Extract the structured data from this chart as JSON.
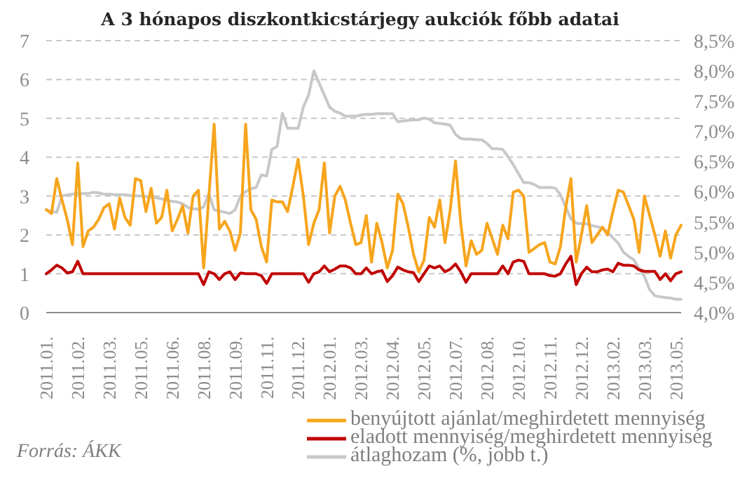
{
  "chart_data": {
    "type": "line",
    "title": "A 3 hónapos diszkontkicstárjegy aukciók főbb adatai",
    "annotations": [
      "Forrás: ÁKK"
    ],
    "categories": [
      "2011.01.",
      null,
      null,
      null,
      null,
      null,
      "2011.02.",
      null,
      null,
      null,
      null,
      null,
      "2011.03.",
      null,
      null,
      null,
      null,
      null,
      "2011.05.",
      null,
      null,
      null,
      null,
      null,
      "2011.06.",
      null,
      null,
      null,
      null,
      null,
      "2011.08.",
      null,
      null,
      null,
      null,
      null,
      "2011.09.",
      null,
      null,
      null,
      null,
      null,
      "2011.11.",
      null,
      null,
      null,
      null,
      null,
      "2011.12.",
      null,
      null,
      null,
      null,
      null,
      "2012.01.",
      null,
      null,
      null,
      null,
      null,
      "2012.03.",
      null,
      null,
      null,
      null,
      null,
      "2012.04.",
      null,
      null,
      null,
      null,
      null,
      "2012.05.",
      null,
      null,
      null,
      null,
      null,
      "2012.07.",
      null,
      null,
      null,
      null,
      null,
      "2012.08.",
      null,
      null,
      null,
      null,
      null,
      "2012.10.",
      null,
      null,
      null,
      null,
      null,
      "2012.11.",
      null,
      null,
      null,
      null,
      null,
      "2012.12.",
      null,
      null,
      null,
      null,
      null,
      "2013.02.",
      null,
      null,
      null,
      null,
      null,
      "2013.03.",
      null,
      null,
      null,
      null,
      null,
      "2013.05.",
      null
    ],
    "series": [
      {
        "name": "benyújtott ajánlat/meghirdetett mennyiség",
        "color": "#f7a51d",
        "values": [
          2.65,
          2.55,
          3.45,
          2.9,
          2.4,
          1.75,
          3.85,
          1.7,
          2.1,
          2.2,
          2.4,
          2.7,
          2.8,
          2.15,
          2.95,
          2.45,
          2.25,
          3.45,
          3.4,
          2.6,
          3.2,
          2.3,
          2.45,
          3.15,
          2.1,
          2.4,
          2.75,
          2.05,
          3.0,
          3.15,
          1.15,
          3.0,
          4.85,
          2.15,
          2.35,
          2.1,
          1.6,
          2.05,
          4.85,
          2.65,
          2.4,
          1.7,
          1.3,
          2.9,
          2.85,
          2.85,
          2.6,
          3.25,
          3.95,
          3.0,
          1.75,
          2.3,
          2.65,
          3.85,
          2.05,
          3.0,
          3.25,
          2.9,
          2.3,
          1.75,
          1.8,
          2.5,
          1.3,
          2.3,
          1.8,
          1.15,
          1.6,
          3.05,
          2.8,
          2.2,
          1.5,
          1.05,
          1.35,
          2.45,
          2.2,
          2.9,
          1.8,
          2.65,
          3.9,
          2.3,
          1.2,
          1.85,
          1.5,
          1.6,
          2.3,
          1.9,
          1.5,
          2.25,
          1.9,
          3.1,
          3.15,
          3.0,
          1.55,
          1.65,
          1.75,
          1.8,
          1.3,
          1.25,
          1.7,
          2.7,
          3.45,
          1.3,
          2.0,
          2.75,
          1.8,
          2.0,
          2.2,
          2.0,
          2.6,
          3.15,
          3.1,
          2.75,
          2.4,
          1.55,
          3.0,
          2.5,
          2.0,
          1.45,
          2.1,
          1.4,
          2.0,
          2.25
        ]
      },
      {
        "name": "eladott mennyiség/meghirdetett mennyiség",
        "color": "#c00000",
        "values": [
          1.0,
          1.1,
          1.22,
          1.15,
          1.02,
          1.05,
          1.32,
          1.0,
          1.0,
          1.0,
          1.0,
          1.0,
          1.0,
          1.0,
          1.0,
          1.0,
          1.0,
          1.0,
          1.0,
          1.0,
          1.0,
          1.0,
          1.0,
          1.0,
          1.0,
          1.0,
          1.0,
          1.0,
          1.0,
          1.0,
          0.72,
          1.05,
          1.0,
          0.85,
          1.0,
          1.05,
          0.85,
          1.02,
          1.0,
          1.0,
          1.0,
          0.95,
          0.75,
          1.0,
          1.0,
          1.0,
          1.0,
          1.0,
          1.0,
          1.0,
          0.78,
          1.0,
          1.05,
          1.2,
          1.05,
          1.12,
          1.2,
          1.2,
          1.15,
          1.0,
          1.0,
          1.15,
          1.0,
          1.05,
          1.08,
          0.8,
          0.95,
          1.17,
          1.1,
          1.05,
          1.03,
          0.8,
          1.0,
          1.2,
          1.15,
          1.2,
          1.05,
          1.12,
          1.25,
          1.05,
          0.78,
          1.0,
          1.0,
          1.0,
          1.0,
          1.0,
          1.0,
          1.2,
          1.0,
          1.3,
          1.35,
          1.32,
          1.0,
          1.0,
          1.0,
          1.0,
          0.95,
          0.94,
          1.0,
          1.25,
          1.45,
          0.72,
          1.0,
          1.17,
          1.05,
          1.05,
          1.1,
          1.12,
          1.05,
          1.27,
          1.22,
          1.22,
          1.2,
          1.1,
          1.06,
          1.06,
          1.06,
          0.85,
          1.0,
          0.82,
          1.0,
          1.05
        ]
      },
      {
        "name": "átlaghozam (%, jobb t.)",
        "color": "#c8c8c8",
        "axis": "y2",
        "values": [
          5.7,
          5.67,
          5.66,
          5.93,
          5.95,
          5.96,
          5.97,
          5.97,
          5.97,
          5.99,
          5.98,
          5.96,
          5.96,
          5.95,
          5.95,
          5.95,
          5.94,
          5.93,
          5.93,
          5.92,
          5.91,
          5.9,
          5.88,
          5.86,
          5.84,
          5.83,
          5.8,
          5.74,
          5.72,
          5.71,
          5.75,
          5.97,
          5.7,
          5.68,
          5.66,
          5.64,
          5.7,
          5.93,
          6.0,
          6.05,
          6.07,
          6.28,
          6.26,
          6.7,
          6.75,
          7.3,
          7.05,
          7.05,
          7.05,
          7.4,
          7.6,
          8.0,
          7.8,
          7.6,
          7.4,
          7.33,
          7.3,
          7.25,
          7.25,
          7.25,
          7.27,
          7.28,
          7.28,
          7.29,
          7.29,
          7.29,
          7.29,
          7.16,
          7.17,
          7.18,
          7.19,
          7.19,
          7.22,
          7.2,
          7.14,
          7.13,
          7.12,
          7.1,
          6.95,
          6.88,
          6.87,
          6.87,
          6.86,
          6.86,
          6.8,
          6.71,
          6.71,
          6.7,
          6.58,
          6.45,
          6.3,
          6.15,
          6.15,
          6.12,
          6.07,
          6.07,
          6.07,
          6.06,
          5.95,
          5.75,
          5.55,
          5.48,
          5.47,
          5.47,
          5.44,
          5.42,
          5.4,
          5.33,
          5.24,
          5.15,
          5.0,
          4.93,
          4.87,
          4.73,
          4.6,
          4.38,
          4.28,
          4.26,
          4.25,
          4.24,
          4.22,
          4.22
        ]
      }
    ],
    "ylim": [
      0,
      7
    ],
    "yticks": [
      0,
      1,
      2,
      3,
      4,
      5,
      6,
      7
    ],
    "y2lim": [
      4,
      8.5
    ],
    "y2ticks": [
      {
        "value": 4,
        "label": "4,0%"
      },
      {
        "value": 4.5,
        "label": "4,5%"
      },
      {
        "value": 5,
        "label": "5,0%"
      },
      {
        "value": 5.5,
        "label": "5,5%"
      },
      {
        "value": 6,
        "label": "6,0%"
      },
      {
        "value": 6.5,
        "label": "6,5%"
      },
      {
        "value": 7,
        "label": "7,0%"
      },
      {
        "value": 7.5,
        "label": "7,5%"
      },
      {
        "value": 8,
        "label": "8,0%"
      },
      {
        "value": 8.5,
        "label": "8,5%"
      }
    ],
    "grid": "y",
    "legend": "bottom right",
    "marker": "none",
    "line_style": "solid"
  }
}
